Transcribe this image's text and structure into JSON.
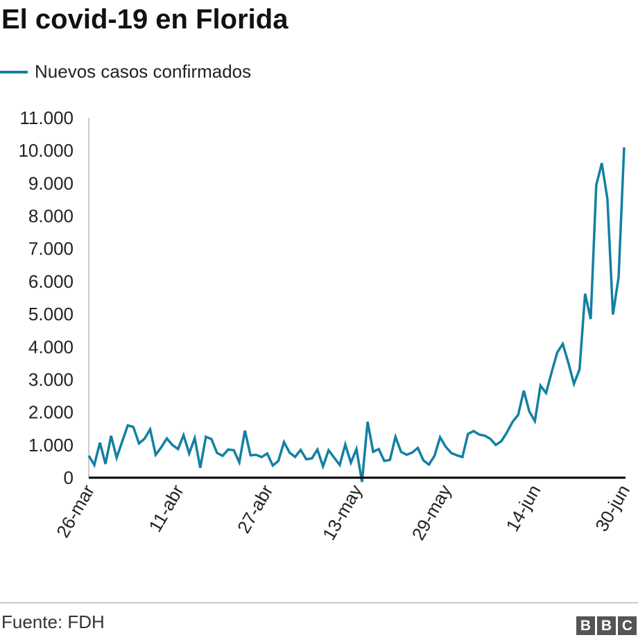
{
  "chart_data": {
    "type": "line",
    "title": "El covid-19 en Florida",
    "xlabel": "",
    "ylabel": "",
    "ylim": [
      0,
      11000
    ],
    "yticks": [
      0,
      1000,
      2000,
      3000,
      4000,
      5000,
      6000,
      7000,
      8000,
      9000,
      10000,
      11000
    ],
    "ytick_labels": [
      "0",
      "1.000",
      "2.000",
      "3.000",
      "4.000",
      "5.000",
      "6.000",
      "7.000",
      "8.000",
      "9.000",
      "10.000",
      "11.000"
    ],
    "xticks": [
      {
        "index": 0,
        "label": "26-mar"
      },
      {
        "index": 16,
        "label": "11-abr"
      },
      {
        "index": 32,
        "label": "27-abr"
      },
      {
        "index": 48,
        "label": "13-may"
      },
      {
        "index": 64,
        "label": "29-may"
      },
      {
        "index": 80,
        "label": "14-jun"
      },
      {
        "index": 96,
        "label": "30-jun"
      }
    ],
    "legend_position": "top-left",
    "grid": false,
    "series": [
      {
        "name": "Nuevos casos confirmados",
        "color": "#1380A1",
        "values": [
          670,
          390,
          1070,
          420,
          1280,
          610,
          1110,
          1600,
          1550,
          1050,
          1190,
          1480,
          700,
          930,
          1200,
          1000,
          875,
          1300,
          740,
          1210,
          300,
          1250,
          1180,
          755,
          670,
          860,
          840,
          470,
          1440,
          685,
          700,
          630,
          740,
          370,
          510,
          1090,
          770,
          635,
          850,
          565,
          590,
          860,
          345,
          840,
          615,
          390,
          1015,
          460,
          875,
          -130,
          1710,
          790,
          875,
          510,
          545,
          1250,
          790,
          700,
          770,
          910,
          530,
          400,
          670,
          1235,
          945,
          755,
          685,
          630,
          1335,
          1425,
          1320,
          1285,
          1190,
          1000,
          1120,
          1390,
          1710,
          1920,
          2660,
          2025,
          1730,
          2815,
          2590,
          3225,
          3825,
          4090,
          3510,
          2870,
          3310,
          5625,
          4850,
          8945,
          9615,
          8520,
          4990,
          6120,
          10100
        ]
      }
    ]
  },
  "footer": {
    "source": "Fuente: FDH",
    "logo": [
      "B",
      "B",
      "C"
    ]
  }
}
